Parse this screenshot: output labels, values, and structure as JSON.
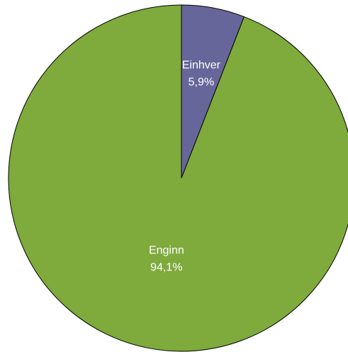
{
  "chart_data": {
    "type": "pie",
    "title": "",
    "slices": [
      {
        "label": "Einhver",
        "value": 5.9,
        "value_label": "5,9%",
        "color": "#66669a"
      },
      {
        "label": "Enginn",
        "value": 94.1,
        "value_label": "94,1%",
        "color": "#7faa3c"
      }
    ],
    "start_angle_deg": 0,
    "direction": "clockwise",
    "stroke_color": "#000000"
  }
}
